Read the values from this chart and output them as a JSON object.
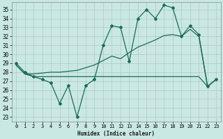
{
  "xlabel": "Humidex (Indice chaleur)",
  "xlim": [
    -0.5,
    23.5
  ],
  "ylim": [
    22.5,
    35.8
  ],
  "yticks": [
    23,
    24,
    25,
    26,
    27,
    28,
    29,
    30,
    31,
    32,
    33,
    34,
    35
  ],
  "xticks": [
    0,
    1,
    2,
    3,
    4,
    5,
    6,
    7,
    8,
    9,
    10,
    11,
    12,
    13,
    14,
    15,
    16,
    17,
    18,
    19,
    20,
    21,
    22,
    23
  ],
  "bg_color": "#c9e8e4",
  "grid_color": "#b0c8c4",
  "line_color": "#1a6b5a",
  "line1_y": [
    29.0,
    28.0,
    27.5,
    27.2,
    26.8,
    24.5,
    26.5,
    23.0,
    26.5,
    27.2,
    31.0,
    33.2,
    33.0,
    29.2,
    34.0,
    35.0,
    34.0,
    35.5,
    35.2,
    32.0,
    33.2,
    32.2,
    26.4,
    27.2
  ],
  "line2_y": [
    28.8,
    27.8,
    27.5,
    27.5,
    27.5,
    27.5,
    27.5,
    27.5,
    27.5,
    27.5,
    27.5,
    27.5,
    27.5,
    27.5,
    27.5,
    27.5,
    27.5,
    27.5,
    27.5,
    27.5,
    27.5,
    27.5,
    26.4,
    27.2
  ],
  "line3_y": [
    28.8,
    27.8,
    27.8,
    27.9,
    28.0,
    28.0,
    28.1,
    28.2,
    28.5,
    28.8,
    29.3,
    29.8,
    29.5,
    30.2,
    30.8,
    31.2,
    31.6,
    32.1,
    32.2,
    32.0,
    32.8,
    32.0,
    26.4,
    27.2
  ]
}
